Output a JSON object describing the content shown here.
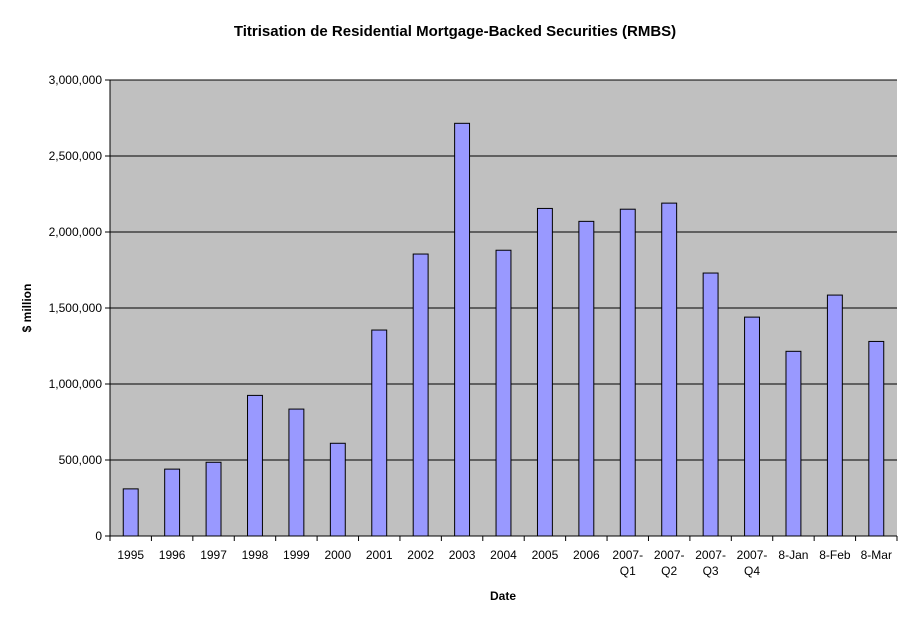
{
  "chart_data": {
    "type": "bar",
    "title": "Titrisation de Residential Mortgage-Backed Securities (RMBS)",
    "xlabel": "Date",
    "ylabel": "$ million",
    "categories": [
      [
        "1995"
      ],
      [
        "1996"
      ],
      [
        "1997"
      ],
      [
        "1998"
      ],
      [
        "1999"
      ],
      [
        "2000"
      ],
      [
        "2001"
      ],
      [
        "2002"
      ],
      [
        "2003"
      ],
      [
        "2004"
      ],
      [
        "2005"
      ],
      [
        "2006"
      ],
      [
        "2007-",
        "Q1"
      ],
      [
        "2007-",
        "Q2"
      ],
      [
        "2007-",
        "Q3"
      ],
      [
        "2007-",
        "Q4"
      ],
      [
        "8-Jan"
      ],
      [
        "8-Feb"
      ],
      [
        "8-Mar"
      ]
    ],
    "series": [
      {
        "values": [
          310000,
          440000,
          485000,
          925000,
          835000,
          610000,
          1355000,
          1855000,
          2715000,
          1880000,
          2155000,
          2070000,
          2150000,
          2190000,
          1730000,
          1440000,
          1215000,
          1585000,
          1280000
        ]
      }
    ],
    "ylim": [
      0,
      3000000
    ],
    "yticks": [
      0,
      500000,
      1000000,
      1500000,
      2000000,
      2500000,
      3000000
    ],
    "ytick_labels": [
      "0",
      "500,000",
      "1,000,000",
      "1,500,000",
      "2,000,000",
      "2,500,000",
      "3,000,000"
    ],
    "grid": true,
    "legend": "none",
    "colors": {
      "bar": "#9999ff",
      "bar_border": "#000000",
      "plot_background": "#c0c0c0",
      "gridline": "#000000"
    }
  }
}
